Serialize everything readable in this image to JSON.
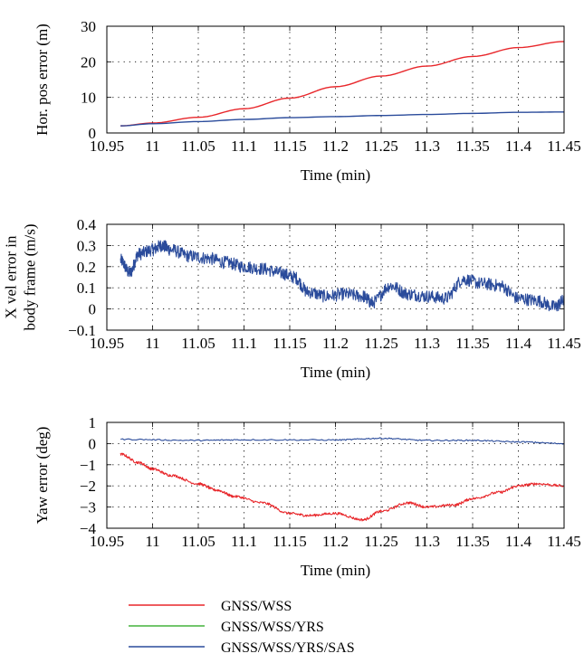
{
  "chart_data": [
    {
      "type": "line",
      "xlabel": "Time (min)",
      "ylabel": [
        "Hor. pos error (m)"
      ],
      "xlim": [
        10.95,
        11.45
      ],
      "ylim": [
        0,
        30
      ],
      "xticks": [
        "10.95",
        "11",
        "11.05",
        "11.1",
        "11.15",
        "11.2",
        "11.25",
        "11.3",
        "11.35",
        "11.4",
        "11.45"
      ],
      "yticks": [
        "0",
        "10",
        "20",
        "30"
      ],
      "grid": true,
      "series": [
        {
          "name": "GNSS/WSS",
          "color": "#e8262a",
          "x": [
            10.965,
            11.0,
            11.05,
            11.1,
            11.15,
            11.2,
            11.25,
            11.3,
            11.35,
            11.4,
            11.45
          ],
          "y": [
            2.0,
            2.8,
            4.4,
            6.8,
            9.8,
            13.0,
            16.0,
            18.8,
            21.5,
            24.0,
            25.7
          ]
        },
        {
          "name": "GNSS/WSS/YRS/SAS",
          "color": "#2a4b9b",
          "x": [
            10.965,
            11.0,
            11.05,
            11.1,
            11.15,
            11.2,
            11.25,
            11.3,
            11.35,
            11.4,
            11.45
          ],
          "y": [
            2.0,
            2.6,
            3.2,
            3.8,
            4.3,
            4.6,
            4.9,
            5.2,
            5.5,
            5.8,
            5.9
          ]
        }
      ]
    },
    {
      "type": "line",
      "xlabel": "Time (min)",
      "ylabel": [
        "X vel error in",
        "body frame (m/s)"
      ],
      "xlim": [
        10.95,
        11.45
      ],
      "ylim": [
        -0.1,
        0.4
      ],
      "xticks": [
        "10.95",
        "11",
        "11.05",
        "11.1",
        "11.15",
        "11.2",
        "11.25",
        "11.3",
        "11.35",
        "11.4",
        "11.45"
      ],
      "yticks": [
        "−0.1",
        "0",
        "0.1",
        "0.2",
        "0.3",
        "0.4"
      ],
      "grid": true,
      "series": [
        {
          "name": "GNSS/WSS/YRS/SAS",
          "color": "#2a4b9b",
          "noise": 0.03,
          "x": [
            10.965,
            10.975,
            10.985,
            11.0,
            11.01,
            11.02,
            11.04,
            11.06,
            11.08,
            11.1,
            11.12,
            11.14,
            11.155,
            11.17,
            11.19,
            11.21,
            11.23,
            11.24,
            11.26,
            11.28,
            11.3,
            11.32,
            11.34,
            11.36,
            11.38,
            11.4,
            11.42,
            11.44,
            11.45
          ],
          "y": [
            0.23,
            0.17,
            0.26,
            0.28,
            0.3,
            0.28,
            0.25,
            0.24,
            0.22,
            0.2,
            0.19,
            0.17,
            0.15,
            0.08,
            0.06,
            0.07,
            0.06,
            0.03,
            0.11,
            0.07,
            0.06,
            0.05,
            0.14,
            0.12,
            0.11,
            0.05,
            0.04,
            0.01,
            0.04
          ]
        }
      ]
    },
    {
      "type": "line",
      "xlabel": "Time (min)",
      "ylabel": [
        "Yaw error (deg)"
      ],
      "xlim": [
        10.95,
        11.45
      ],
      "ylim": [
        -4,
        1
      ],
      "xticks": [
        "10.95",
        "11",
        "11.05",
        "11.1",
        "11.15",
        "11.2",
        "11.25",
        "11.3",
        "11.35",
        "11.4",
        "11.45"
      ],
      "yticks": [
        "−4",
        "−3",
        "−2",
        "−1",
        "0",
        "1"
      ],
      "grid": true,
      "series": [
        {
          "name": "GNSS/WSS",
          "color": "#e8262a",
          "noise": 0.06,
          "x": [
            10.965,
            10.985,
            11.0,
            11.02,
            11.05,
            11.07,
            11.09,
            11.12,
            11.15,
            11.17,
            11.2,
            11.23,
            11.25,
            11.28,
            11.3,
            11.33,
            11.35,
            11.38,
            11.4,
            11.42,
            11.45
          ],
          "y": [
            -0.5,
            -0.9,
            -1.2,
            -1.5,
            -1.9,
            -2.2,
            -2.5,
            -2.8,
            -3.3,
            -3.4,
            -3.3,
            -3.6,
            -3.2,
            -2.8,
            -3.0,
            -2.9,
            -2.6,
            -2.3,
            -2.0,
            -1.9,
            -2.0
          ]
        },
        {
          "name": "GNSS/WSS/YRS/SAS",
          "color": "#2a4b9b",
          "noise": 0.03,
          "x": [
            10.965,
            11.05,
            11.1,
            11.2,
            11.25,
            11.3,
            11.35,
            11.4,
            11.45
          ],
          "y": [
            0.2,
            0.15,
            0.18,
            0.17,
            0.25,
            0.15,
            0.15,
            0.08,
            0.0
          ]
        }
      ]
    }
  ],
  "legend": {
    "placement": "bottom-center",
    "entries": [
      {
        "label": "GNSS/WSS",
        "color": "#e8262a"
      },
      {
        "label": "GNSS/WSS/YRS",
        "color": "#43b43c"
      },
      {
        "label": "GNSS/WSS/YRS/SAS",
        "color": "#2a4b9b"
      }
    ]
  }
}
